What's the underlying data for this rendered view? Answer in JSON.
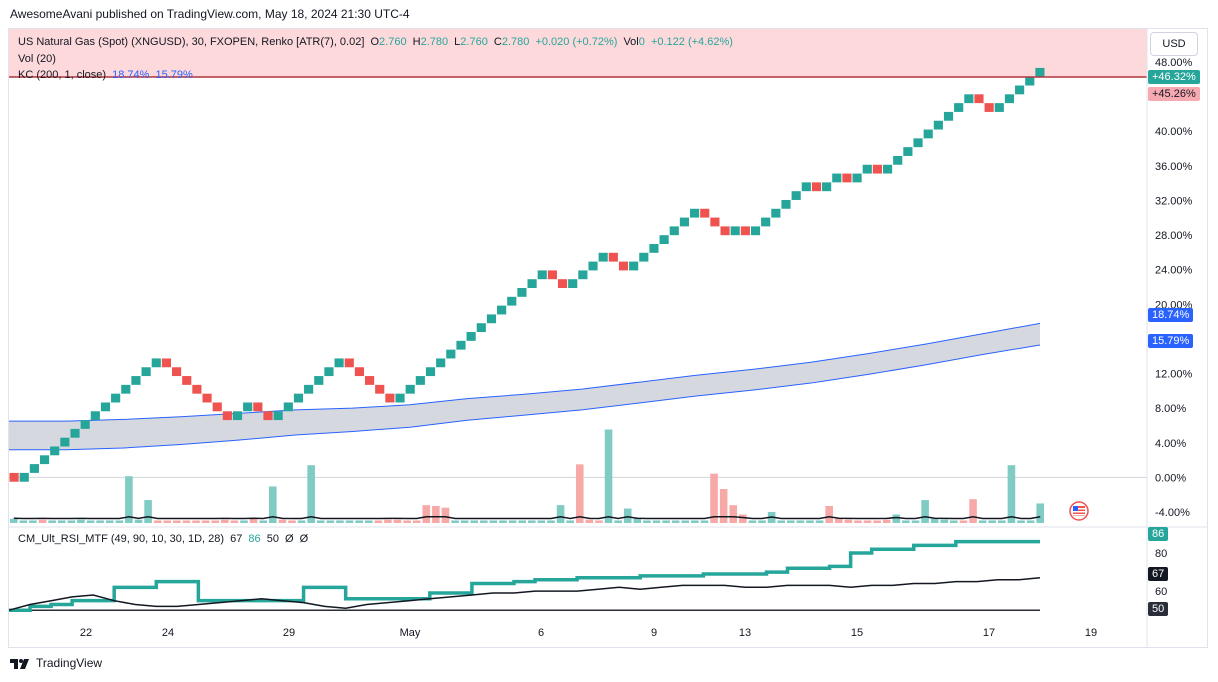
{
  "header": {
    "publisher": "AwesomeAvani published on TradingView.com, May 18, 2024 21:30 UTC-4"
  },
  "legend": {
    "symbol": "US Natural Gas (Spot) (XNGUSD), 30, FXOPEN, Renko [ATR(7), 0.02]",
    "o_label": "O",
    "o_value": "2.760",
    "h_label": "H",
    "h_value": "2.780",
    "l_label": "L",
    "l_value": "2.760",
    "c_label": "C",
    "c_value": "2.780",
    "change": "+0.020 (+0.72%)",
    "vol_label": "Vol",
    "vol_value": "0",
    "vol_change": "+0.122 (+4.62%)",
    "vol_indicator": "Vol (20)",
    "kc_label": "KC (200, 1, close)",
    "kc_upper": "18.74%",
    "kc_lower": "15.79%"
  },
  "rsi_legend": {
    "label": "CM_Ult_RSI_MTF (49, 90, 10, 30, 1D, 28)",
    "v1": "67",
    "v2": "86",
    "v3": "50",
    "v4": "Ø",
    "v5": "Ø"
  },
  "currency_button": "USD",
  "badges": {
    "price_up": "+46.32%",
    "price_down": "+45.26%",
    "kc_upper": "18.74%",
    "kc_lower": "15.79%",
    "rsi_86": "86",
    "rsi_67": "67",
    "rsi_50": "50"
  },
  "footer": {
    "brand": "TradingView"
  },
  "colors": {
    "up": "#26a69a",
    "down": "#ef5350",
    "kc_line": "#2962ff",
    "kc_fill": "#d1d4dc",
    "header_bg": "#fdd9dc",
    "rsi_line": "#26a69a"
  },
  "chart_data": [
    {
      "type": "line",
      "title": "US Natural Gas (Spot) (XNGUSD), 30, FXOPEN, Renko [ATR(7), 0.02]",
      "y_axis_ticks": [
        "48.00%",
        "44.00%",
        "40.00%",
        "36.00%",
        "32.00%",
        "28.00%",
        "24.00%",
        "20.00%",
        "16.00%",
        "12.00%",
        "8.00%",
        "4.00%",
        "0.00%",
        "-4.00%"
      ],
      "x_axis_ticks": [
        "22",
        "24",
        "29",
        "May",
        "6",
        "9",
        "13",
        "15",
        "17",
        "19"
      ],
      "ylim": [
        -4,
        48
      ],
      "renko_bricks": [
        [
          "d",
          0.0
        ],
        [
          "u",
          0.0
        ],
        [
          "u",
          1.0
        ],
        [
          "u",
          2.0
        ],
        [
          "u",
          3.0
        ],
        [
          "u",
          4.0
        ],
        [
          "u",
          5.0
        ],
        [
          "u",
          6.0
        ],
        [
          "u",
          7.0
        ],
        [
          "u",
          8.0
        ],
        [
          "u",
          9.0
        ],
        [
          "u",
          10.0
        ],
        [
          "u",
          11.0
        ],
        [
          "u",
          12.0
        ],
        [
          "u",
          13.0
        ],
        [
          "d",
          13.0
        ],
        [
          "d",
          12.0
        ],
        [
          "d",
          11.0
        ],
        [
          "d",
          10.0
        ],
        [
          "d",
          9.0
        ],
        [
          "d",
          8.0
        ],
        [
          "d",
          7.0
        ],
        [
          "u",
          7.0
        ],
        [
          "u",
          8.0
        ],
        [
          "d",
          8.0
        ],
        [
          "d",
          7.0
        ],
        [
          "u",
          7.0
        ],
        [
          "u",
          8.0
        ],
        [
          "u",
          9.0
        ],
        [
          "u",
          10.0
        ],
        [
          "u",
          11.0
        ],
        [
          "u",
          12.0
        ],
        [
          "u",
          13.0
        ],
        [
          "d",
          13.0
        ],
        [
          "d",
          12.0
        ],
        [
          "d",
          11.0
        ],
        [
          "d",
          10.0
        ],
        [
          "d",
          9.0
        ],
        [
          "u",
          9.0
        ],
        [
          "u",
          10.0
        ],
        [
          "u",
          11.0
        ],
        [
          "u",
          12.0
        ],
        [
          "u",
          13.0
        ],
        [
          "u",
          14.0
        ],
        [
          "u",
          15.0
        ],
        [
          "u",
          16.0
        ],
        [
          "u",
          17.0
        ],
        [
          "u",
          18.0
        ],
        [
          "u",
          19.0
        ],
        [
          "u",
          20.0
        ],
        [
          "u",
          21.0
        ],
        [
          "u",
          22.0
        ],
        [
          "u",
          23.0
        ],
        [
          "d",
          23.0
        ],
        [
          "d",
          22.0
        ],
        [
          "u",
          22.0
        ],
        [
          "u",
          23.0
        ],
        [
          "u",
          24.0
        ],
        [
          "u",
          25.0
        ],
        [
          "d",
          25.0
        ],
        [
          "d",
          24.0
        ],
        [
          "u",
          24.0
        ],
        [
          "u",
          25.0
        ],
        [
          "u",
          26.0
        ],
        [
          "u",
          27.0
        ],
        [
          "u",
          28.0
        ],
        [
          "u",
          29.0
        ],
        [
          "u",
          30.0
        ],
        [
          "d",
          30.0
        ],
        [
          "d",
          29.0
        ],
        [
          "d",
          28.0
        ],
        [
          "u",
          28.0
        ],
        [
          "d",
          28.0
        ],
        [
          "u",
          28.0
        ],
        [
          "u",
          29.0
        ],
        [
          "u",
          30.0
        ],
        [
          "u",
          31.0
        ],
        [
          "u",
          32.0
        ],
        [
          "u",
          33.0
        ],
        [
          "d",
          33.0
        ],
        [
          "u",
          33.0
        ],
        [
          "u",
          34.0
        ],
        [
          "d",
          34.0
        ],
        [
          "u",
          34.0
        ],
        [
          "u",
          35.0
        ],
        [
          "d",
          35.0
        ],
        [
          "u",
          35.0
        ],
        [
          "u",
          36.0
        ],
        [
          "u",
          37.0
        ],
        [
          "u",
          38.0
        ],
        [
          "u",
          39.0
        ],
        [
          "u",
          40.0
        ],
        [
          "u",
          41.0
        ],
        [
          "u",
          42.0
        ],
        [
          "u",
          43.0
        ],
        [
          "d",
          43.0
        ],
        [
          "d",
          42.0
        ],
        [
          "u",
          42.0
        ],
        [
          "u",
          43.0
        ],
        [
          "u",
          44.0
        ],
        [
          "u",
          45.0
        ],
        [
          "u",
          46.0
        ]
      ],
      "brick_size": 1.0,
      "kc_upper": [
        6.5,
        6.5,
        6.7,
        7.0,
        7.4,
        7.8,
        8.0,
        8.4,
        9.1,
        9.6,
        10.2,
        11.0,
        11.8,
        12.5,
        13.3,
        14.3,
        15.4,
        16.6,
        17.8
      ],
      "kc_lower": [
        3.2,
        3.2,
        3.4,
        3.8,
        4.3,
        4.9,
        5.3,
        5.8,
        6.6,
        7.2,
        7.8,
        8.6,
        9.4,
        10.1,
        10.9,
        11.9,
        13.0,
        14.2,
        15.3
      ],
      "volume_bars": [
        [
          "u",
          0.5
        ],
        [
          "u",
          0.3
        ],
        [
          "u",
          0.3
        ],
        [
          "d",
          0.4
        ],
        [
          "u",
          0.3
        ],
        [
          "u",
          0.3
        ],
        [
          "u",
          0.3
        ],
        [
          "u",
          0.4
        ],
        [
          "u",
          0.3
        ],
        [
          "u",
          0.3
        ],
        [
          "u",
          0.3
        ],
        [
          "u",
          0.3
        ],
        [
          "u",
          5.5
        ],
        [
          "u",
          0.4
        ],
        [
          "u",
          2.7
        ],
        [
          "d",
          0.3
        ],
        [
          "d",
          0.3
        ],
        [
          "d",
          0.3
        ],
        [
          "d",
          0.3
        ],
        [
          "d",
          0.3
        ],
        [
          "d",
          0.3
        ],
        [
          "d",
          0.3
        ],
        [
          "d",
          0.4
        ],
        [
          "d",
          0.3
        ],
        [
          "u",
          0.3
        ],
        [
          "d",
          0.5
        ],
        [
          "u",
          0.3
        ],
        [
          "u",
          4.3
        ],
        [
          "d",
          0.4
        ],
        [
          "d",
          0.3
        ],
        [
          "u",
          0.3
        ],
        [
          "u",
          6.8
        ],
        [
          "u",
          0.3
        ],
        [
          "u",
          0.3
        ],
        [
          "u",
          0.3
        ],
        [
          "u",
          0.3
        ],
        [
          "u",
          0.3
        ],
        [
          "u",
          0.3
        ],
        [
          "d",
          0.3
        ],
        [
          "d",
          0.4
        ],
        [
          "d",
          0.4
        ],
        [
          "d",
          0.3
        ],
        [
          "d",
          0.3
        ],
        [
          "d",
          2.1
        ],
        [
          "d",
          2.0
        ],
        [
          "d",
          1.8
        ],
        [
          "u",
          0.3
        ],
        [
          "u",
          0.3
        ],
        [
          "u",
          0.3
        ],
        [
          "u",
          0.3
        ],
        [
          "u",
          0.3
        ],
        [
          "u",
          0.3
        ],
        [
          "u",
          0.3
        ],
        [
          "u",
          0.3
        ],
        [
          "u",
          0.3
        ],
        [
          "u",
          0.3
        ],
        [
          "u",
          0.3
        ],
        [
          "u",
          2.1
        ],
        [
          "u",
          0.3
        ],
        [
          "d",
          6.9
        ],
        [
          "d",
          0.4
        ],
        [
          "d",
          0.3
        ],
        [
          "u",
          11.0
        ],
        [
          "u",
          0.3
        ],
        [
          "u",
          1.7
        ],
        [
          "u",
          0.5
        ],
        [
          "u",
          0.3
        ],
        [
          "u",
          0.3
        ],
        [
          "u",
          0.3
        ],
        [
          "u",
          0.3
        ],
        [
          "u",
          0.3
        ],
        [
          "u",
          0.3
        ],
        [
          "u",
          0.3
        ],
        [
          "d",
          5.8
        ],
        [
          "d",
          4.0
        ],
        [
          "d",
          2.1
        ],
        [
          "d",
          1.0
        ],
        [
          "u",
          0.3
        ],
        [
          "u",
          0.3
        ],
        [
          "u",
          1.3
        ],
        [
          "u",
          0.3
        ],
        [
          "u",
          0.3
        ],
        [
          "u",
          0.3
        ],
        [
          "u",
          0.3
        ],
        [
          "u",
          0.3
        ],
        [
          "d",
          2.0
        ],
        [
          "d",
          0.5
        ],
        [
          "d",
          0.4
        ],
        [
          "d",
          0.3
        ],
        [
          "d",
          0.3
        ],
        [
          "d",
          0.3
        ],
        [
          "d",
          0.4
        ],
        [
          "u",
          1.0
        ],
        [
          "u",
          0.3
        ],
        [
          "u",
          0.3
        ],
        [
          "u",
          2.7
        ],
        [
          "u",
          0.5
        ],
        [
          "u",
          0.4
        ],
        [
          "u",
          0.3
        ],
        [
          "d",
          0.3
        ],
        [
          "d",
          2.8
        ],
        [
          "u",
          0.3
        ],
        [
          "u",
          0.3
        ],
        [
          "u",
          0.3
        ],
        [
          "u",
          6.8
        ],
        [
          "u",
          0.3
        ],
        [
          "u",
          0.3
        ],
        [
          "u",
          2.3
        ]
      ]
    },
    {
      "type": "line",
      "title": "CM_Ult_RSI_MTF (49, 90, 10, 30, 1D, 28)",
      "y_axis_ticks": [
        "80",
        "60"
      ],
      "ylim": [
        48,
        90
      ],
      "series": [
        {
          "values": [
            50,
            52,
            53,
            55,
            55,
            62,
            62,
            65,
            65,
            55,
            55,
            55,
            55,
            55,
            62,
            62,
            56,
            56,
            56,
            56,
            59,
            59,
            64,
            64,
            65,
            66,
            66,
            67,
            67,
            67,
            68,
            68,
            68,
            69,
            69,
            69,
            70,
            72,
            72,
            73,
            80,
            82,
            82,
            84,
            84,
            86,
            86,
            86,
            86,
            86
          ]
        },
        {
          "values": [
            50,
            53,
            55,
            57,
            58,
            55,
            53,
            52,
            52,
            53,
            54,
            55,
            56,
            55,
            54,
            52,
            51,
            53,
            54,
            55,
            56,
            57,
            58,
            59,
            59,
            60,
            60,
            60,
            61,
            62,
            61,
            62,
            63,
            63,
            63,
            62,
            62,
            63,
            63,
            63,
            62,
            63,
            63,
            64,
            64,
            65,
            65,
            66,
            66,
            67
          ]
        }
      ],
      "reference_line": 50
    }
  ]
}
